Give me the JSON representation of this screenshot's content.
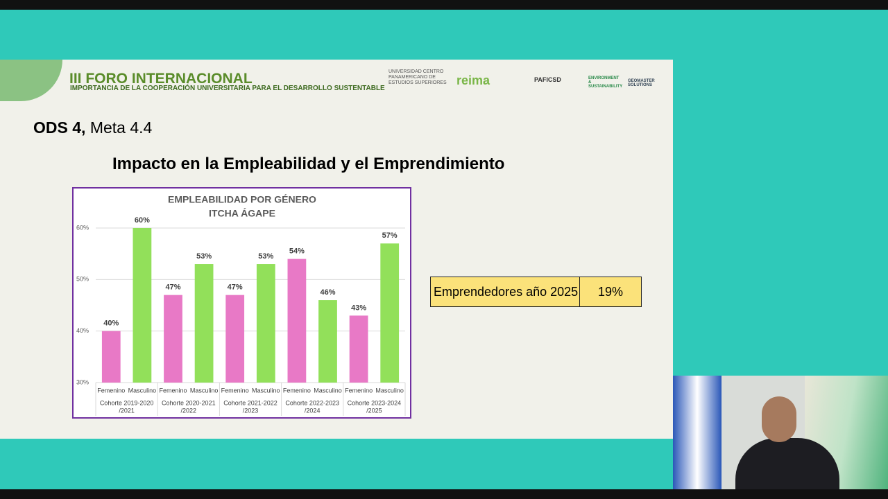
{
  "header": {
    "title": "III FORO INTERNACIONAL",
    "subtitle": "IMPORTANCIA DE LA COOPERACIÓN UNIVERSITARIA PARA EL DESARROLLO SUSTENTABLE",
    "logos": [
      "UNIVERSIDAD CENTRO PANAMERICANO DE ESTUDIOS SUPERIORES",
      "reima",
      "PAFICSD",
      "ENVIRONMENT & SUSTAINABILITY",
      "GEOMASTER SOLUTIONS"
    ]
  },
  "slide": {
    "ods": "ODS 4,",
    "meta": "Meta 4.4",
    "heading": "Impacto en la Empleabilidad y el Emprendimiento"
  },
  "table": {
    "rows": [
      [
        "Emprendedores año 2025",
        "19%"
      ]
    ]
  },
  "chart_data": {
    "type": "bar",
    "title": [
      "EMPLEABILIDAD POR GÉNERO",
      "ITCHA ÁGAPE"
    ],
    "categories": [
      "Femenino",
      "Masculino",
      "Femenino",
      "Masculino",
      "Femenino",
      "Masculino",
      "Femenino",
      "Masculino",
      "Femenino",
      "Masculino"
    ],
    "groups": [
      [
        "Cohorte 2019-2020",
        "/2021"
      ],
      [
        "Cohorte 2020-2021",
        "/2022"
      ],
      [
        "Cohorte 2021-2022",
        "/2023"
      ],
      [
        "Cohorte 2022-2023",
        "/2024"
      ],
      [
        "Cohorte 2023-2024",
        "/2025"
      ]
    ],
    "values": [
      40,
      60,
      47,
      53,
      47,
      53,
      54,
      46,
      43,
      57
    ],
    "value_labels": [
      "40%",
      "60%",
      "47%",
      "53%",
      "47%",
      "53%",
      "54%",
      "46%",
      "43%",
      "57%"
    ],
    "colors": [
      "#e879c6",
      "#92e05a",
      "#e879c6",
      "#92e05a",
      "#e879c6",
      "#92e05a",
      "#e879c6",
      "#92e05a",
      "#e879c6",
      "#92e05a"
    ],
    "ylim": [
      30,
      60
    ],
    "yticks": [
      {
        "value": 30,
        "label": "30%"
      },
      {
        "value": 40,
        "label": "40%"
      },
      {
        "value": 50,
        "label": "50%"
      },
      {
        "value": 60,
        "label": "60%"
      }
    ],
    "grid": true
  }
}
